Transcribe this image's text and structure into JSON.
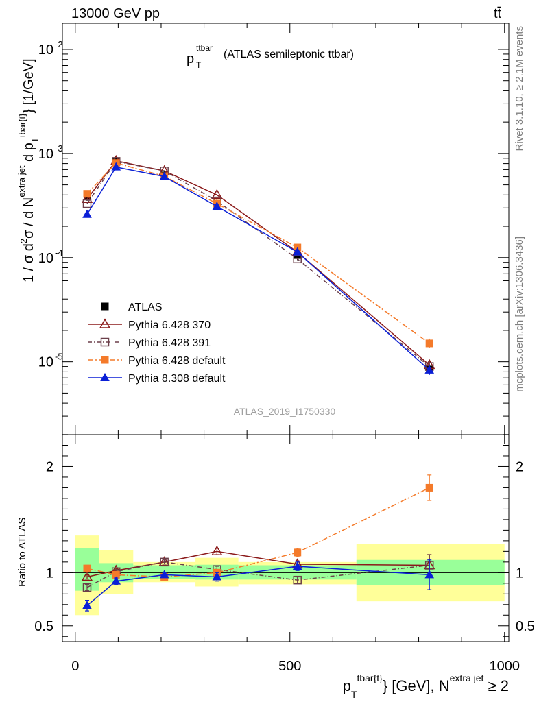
{
  "header": {
    "left": "13000 GeV pp",
    "right": "tt̄"
  },
  "side_labels": {
    "rivet": "Rivet 3.1.10, ≥ 2.1M events",
    "mcplots": "mcplots.cern.ch [arXiv:1306.3436]"
  },
  "chart_data": {
    "type": "line",
    "title_main": "p",
    "title_sup": "ttbar",
    "title_sub": "T",
    "title_rest": "(ATLAS semileptonic ttbar)",
    "watermark": "ATLAS_2019_I1750330",
    "xlabel": {
      "p": "p",
      "sub": "T",
      "sup": "tbar{t}",
      "rest": "} [GeV], N",
      "sup2": "extra jet",
      "tail": " ≥ 2"
    },
    "ylabel": {
      "main": "1 / σ d",
      "sup1": "2",
      "mid": "σ /  d N",
      "sup2": "extra jet",
      "mid2": " d p",
      "sub3": "T",
      "sup3": "tbar{t}",
      "tail": "} [1/GeV]"
    },
    "ratio_ylabel": "Ratio to ATLAS",
    "xlim": [
      -30,
      1010
    ],
    "main_ylim_log10": [
      -5.7,
      -1.75
    ],
    "ratio_ylim": [
      0.35,
      2.3
    ],
    "x_ticks": [
      0,
      500,
      1000
    ],
    "main_y_ticks": [
      {
        "exp": -2
      },
      {
        "exp": -3
      },
      {
        "exp": -4
      },
      {
        "exp": -5
      }
    ],
    "ratio_y_ticks": [
      0.5,
      1,
      2
    ],
    "ratio_y_tick_labels": [
      "0.5",
      "1",
      "2"
    ],
    "x": [
      27.5,
      95,
      207.5,
      330,
      517.5,
      825
    ],
    "bin_edges": [
      0,
      55,
      135,
      280,
      380,
      655,
      1000
    ],
    "band_inner": [
      [
        0.83,
        1.23
      ],
      [
        0.91,
        1.09
      ],
      [
        0.94,
        1.07
      ],
      [
        0.935,
        1.075
      ],
      [
        0.935,
        1.07
      ],
      [
        0.88,
        1.12
      ]
    ],
    "band_outer": [
      [
        0.6,
        1.35
      ],
      [
        0.8,
        1.21
      ],
      [
        0.91,
        1.1
      ],
      [
        0.87,
        1.14
      ],
      [
        0.89,
        1.1
      ],
      [
        0.73,
        1.27
      ]
    ],
    "series": [
      {
        "name": "ATLAS",
        "color": "#000000",
        "marker": "square-filled",
        "dash": "",
        "values": [
          0.00039,
          0.00083,
          0.00062,
          0.00033,
          0.000105,
          8.5e-06
        ],
        "ratio": [
          1,
          1,
          1,
          1,
          1,
          1
        ],
        "ratio_err": [
          0,
          0,
          0,
          0,
          0,
          0
        ]
      },
      {
        "name": "Pythia 6.428 370",
        "color": "#8b1a1a",
        "marker": "triangle-open",
        "dash": "",
        "values": [
          0.000365,
          0.00085,
          0.00068,
          0.0004,
          0.000113,
          9.3e-06
        ],
        "ratio": [
          0.96,
          1.02,
          1.1,
          1.2,
          1.08,
          1.07
        ],
        "ratio_err": [
          0.02,
          0.02,
          0.02,
          0.03,
          0.03,
          0.1
        ]
      },
      {
        "name": "Pythia 6.428 391",
        "color": "#6b3f4a",
        "marker": "square-open",
        "dash": "6,3,1,3",
        "values": [
          0.00033,
          0.00084,
          0.00068,
          0.00035,
          9.7e-05,
          9e-06
        ],
        "ratio": [
          0.86,
          1.01,
          1.1,
          1.03,
          0.93,
          1.07
        ],
        "ratio_err": [
          0.03,
          0.02,
          0.02,
          0.03,
          0.03,
          0.1
        ]
      },
      {
        "name": "Pythia 6.428 default",
        "color": "#f47a2a",
        "marker": "square-filled",
        "dash": "8,3,2,3",
        "values": [
          0.00041,
          0.00081,
          0.000605,
          0.00033,
          0.000125,
          1.5e-05
        ],
        "ratio": [
          1.04,
          0.98,
          0.96,
          1.0,
          1.19,
          1.8
        ],
        "ratio_err": [
          0.03,
          0.02,
          0.02,
          0.03,
          0.04,
          0.12
        ]
      },
      {
        "name": "Pythia 8.308 default",
        "color": "#0a1fd6",
        "marker": "triangle-filled",
        "dash": "",
        "values": [
          0.00026,
          0.00074,
          0.0006,
          0.00031,
          0.000113,
          8.3e-06
        ],
        "ratio": [
          0.69,
          0.92,
          0.98,
          0.96,
          1.06,
          0.98
        ],
        "ratio_err": [
          0.05,
          0.03,
          0.02,
          0.04,
          0.04,
          0.14
        ]
      }
    ]
  }
}
